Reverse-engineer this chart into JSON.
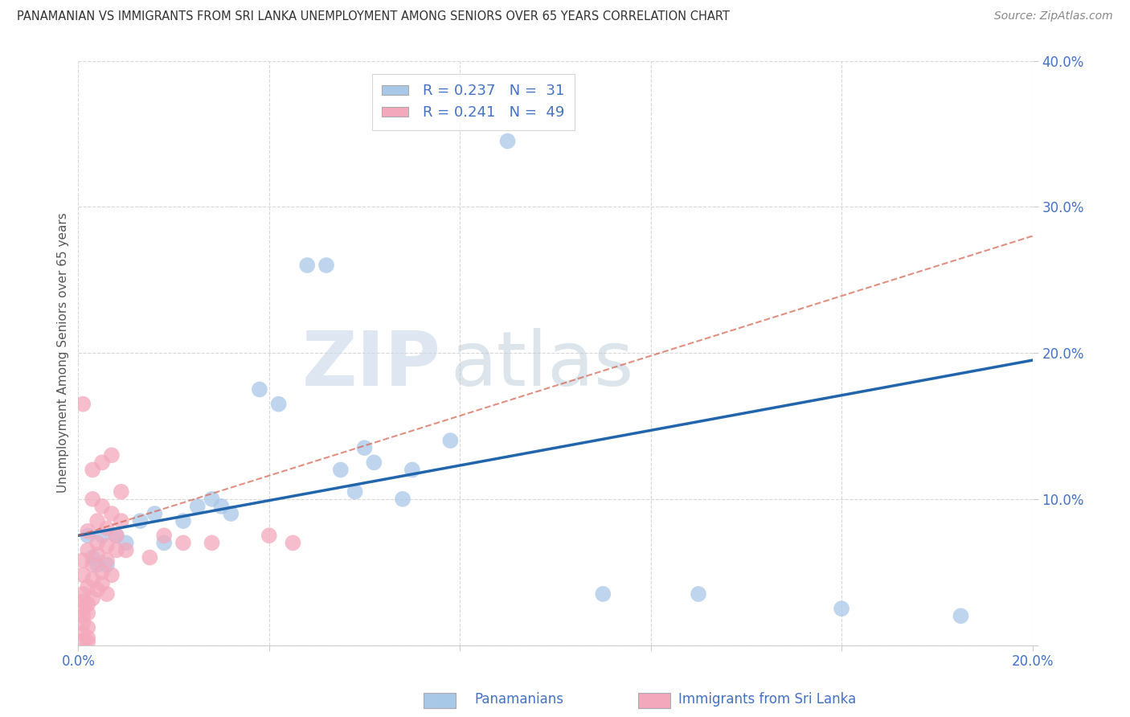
{
  "title": "PANAMANIAN VS IMMIGRANTS FROM SRI LANKA UNEMPLOYMENT AMONG SENIORS OVER 65 YEARS CORRELATION CHART",
  "source": "Source: ZipAtlas.com",
  "ylabel": "Unemployment Among Seniors over 65 years",
  "xlim": [
    0.0,
    0.2
  ],
  "ylim": [
    0.0,
    0.4
  ],
  "xticks": [
    0.0,
    0.04,
    0.08,
    0.12,
    0.16,
    0.2
  ],
  "yticks": [
    0.0,
    0.1,
    0.2,
    0.3,
    0.4
  ],
  "xtick_labels": [
    "0.0%",
    "",
    "",
    "",
    "",
    "20.0%"
  ],
  "ytick_labels": [
    "",
    "10.0%",
    "20.0%",
    "30.0%",
    "40.0%"
  ],
  "legend_R1": "R = 0.237",
  "legend_N1": "N =  31",
  "legend_R2": "R = 0.241",
  "legend_N2": "N =  49",
  "color_pan": "#a8c8e8",
  "color_sri": "#f4a8bc",
  "pan_scatter": [
    [
      0.005,
      0.075
    ],
    [
      0.008,
      0.075
    ],
    [
      0.01,
      0.07
    ],
    [
      0.013,
      0.085
    ],
    [
      0.016,
      0.09
    ],
    [
      0.018,
      0.07
    ],
    [
      0.022,
      0.085
    ],
    [
      0.025,
      0.095
    ],
    [
      0.028,
      0.1
    ],
    [
      0.03,
      0.095
    ],
    [
      0.032,
      0.09
    ],
    [
      0.038,
      0.175
    ],
    [
      0.042,
      0.165
    ],
    [
      0.048,
      0.26
    ],
    [
      0.052,
      0.26
    ],
    [
      0.06,
      0.135
    ],
    [
      0.062,
      0.125
    ],
    [
      0.055,
      0.12
    ],
    [
      0.07,
      0.12
    ],
    [
      0.078,
      0.14
    ],
    [
      0.058,
      0.105
    ],
    [
      0.002,
      0.075
    ],
    [
      0.003,
      0.06
    ],
    [
      0.004,
      0.055
    ],
    [
      0.006,
      0.055
    ],
    [
      0.068,
      0.1
    ],
    [
      0.09,
      0.345
    ],
    [
      0.11,
      0.035
    ],
    [
      0.13,
      0.035
    ],
    [
      0.16,
      0.025
    ],
    [
      0.185,
      0.02
    ]
  ],
  "sri_scatter": [
    [
      0.001,
      0.165
    ],
    [
      0.003,
      0.12
    ],
    [
      0.005,
      0.125
    ],
    [
      0.007,
      0.13
    ],
    [
      0.009,
      0.105
    ],
    [
      0.003,
      0.1
    ],
    [
      0.005,
      0.095
    ],
    [
      0.007,
      0.09
    ],
    [
      0.009,
      0.085
    ],
    [
      0.004,
      0.085
    ],
    [
      0.006,
      0.08
    ],
    [
      0.008,
      0.075
    ],
    [
      0.002,
      0.078
    ],
    [
      0.004,
      0.07
    ],
    [
      0.006,
      0.068
    ],
    [
      0.008,
      0.065
    ],
    [
      0.002,
      0.065
    ],
    [
      0.004,
      0.062
    ],
    [
      0.006,
      0.058
    ],
    [
      0.001,
      0.058
    ],
    [
      0.003,
      0.055
    ],
    [
      0.005,
      0.05
    ],
    [
      0.007,
      0.048
    ],
    [
      0.001,
      0.048
    ],
    [
      0.003,
      0.045
    ],
    [
      0.005,
      0.042
    ],
    [
      0.002,
      0.04
    ],
    [
      0.004,
      0.038
    ],
    [
      0.006,
      0.035
    ],
    [
      0.001,
      0.035
    ],
    [
      0.003,
      0.032
    ],
    [
      0.001,
      0.03
    ],
    [
      0.002,
      0.028
    ],
    [
      0.001,
      0.025
    ],
    [
      0.002,
      0.022
    ],
    [
      0.001,
      0.02
    ],
    [
      0.001,
      0.015
    ],
    [
      0.002,
      0.012
    ],
    [
      0.001,
      0.008
    ],
    [
      0.002,
      0.005
    ],
    [
      0.001,
      0.003
    ],
    [
      0.002,
      0.002
    ],
    [
      0.018,
      0.075
    ],
    [
      0.022,
      0.07
    ],
    [
      0.028,
      0.07
    ],
    [
      0.04,
      0.075
    ],
    [
      0.045,
      0.07
    ],
    [
      0.01,
      0.065
    ],
    [
      0.015,
      0.06
    ]
  ],
  "pan_line_x": [
    0.0,
    0.2
  ],
  "pan_line_y": [
    0.075,
    0.195
  ],
  "sri_line_x": [
    0.0,
    0.2
  ],
  "sri_line_y": [
    0.075,
    0.28
  ],
  "watermark_zip": "ZIP",
  "watermark_atlas": "atlas",
  "background_color": "#ffffff",
  "grid_color": "#d8d8d8",
  "grid_style": "--"
}
